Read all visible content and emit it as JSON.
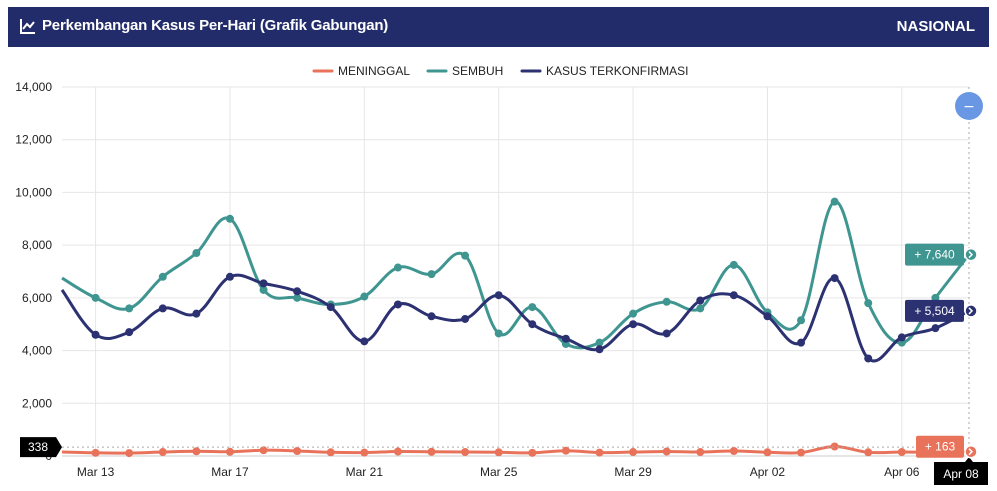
{
  "header": {
    "title": "Perkembangan Kasus Per-Hari (Grafik Gabungan)",
    "region": "NASIONAL"
  },
  "controls": {
    "zoom_out_symbol": "−"
  },
  "colors": {
    "header_bg": "#232c6b",
    "meninggal": "#e8735a",
    "sembuh": "#3f9590",
    "kasus": "#2c3172",
    "zoom_button": "#6a97e4",
    "crosshair_tag": "#000000"
  },
  "chart_data": {
    "type": "line",
    "x_range": [
      "Mar 12",
      "Apr 08"
    ],
    "x": [
      "Mar 12",
      "Mar 13",
      "Mar 14",
      "Mar 15",
      "Mar 16",
      "Mar 17",
      "Mar 18",
      "Mar 19",
      "Mar 20",
      "Mar 21",
      "Mar 22",
      "Mar 23",
      "Mar 24",
      "Mar 25",
      "Mar 26",
      "Mar 27",
      "Mar 28",
      "Mar 29",
      "Mar 30",
      "Mar 31",
      "Apr 01",
      "Apr 02",
      "Apr 03",
      "Apr 04",
      "Apr 05",
      "Apr 06",
      "Apr 07",
      "Apr 08"
    ],
    "x_tick_labels": [
      "Mar 13",
      "Mar 17",
      "Mar 21",
      "Mar 25",
      "Mar 29",
      "Apr 02",
      "Apr 06"
    ],
    "y_ticks": [
      "0",
      "2,000",
      "4,000",
      "6,000",
      "8,000",
      "10,000",
      "12,000",
      "14,000"
    ],
    "ylim": [
      0,
      14000
    ],
    "grid": true,
    "legend_position": "top-center",
    "series": [
      {
        "name": "MENINGGAL",
        "key": "meninggal",
        "values": [
          150,
          120,
          110,
          150,
          180,
          160,
          220,
          190,
          140,
          130,
          170,
          160,
          150,
          140,
          120,
          200,
          130,
          150,
          170,
          150,
          190,
          140,
          130,
          360,
          140,
          150,
          140,
          163
        ]
      },
      {
        "name": "SEMBUH",
        "key": "sembuh",
        "values": [
          6750,
          6000,
          5600,
          6800,
          7700,
          9000,
          6300,
          6000,
          5750,
          6050,
          7150,
          6900,
          7600,
          4650,
          5650,
          4250,
          4300,
          5400,
          5850,
          5600,
          7250,
          5450,
          5150,
          9650,
          5800,
          4300,
          6000,
          7640
        ]
      },
      {
        "name": "KASUS TERKONFIRMASI",
        "key": "kasus",
        "values": [
          6300,
          4600,
          4700,
          5600,
          5400,
          6800,
          6550,
          6250,
          5650,
          4350,
          5750,
          5300,
          5200,
          6100,
          5000,
          4450,
          4050,
          5000,
          4650,
          5900,
          6100,
          5300,
          4300,
          6750,
          3700,
          4500,
          4850,
          5504
        ]
      }
    ],
    "annotations": {
      "crosshair_x": "Apr 08",
      "crosshair_y": "338",
      "flags": [
        {
          "series": "sembuh",
          "label": "+ 7,640"
        },
        {
          "series": "kasus",
          "label": "+ 5,504"
        },
        {
          "series": "meninggal",
          "label": "+ 163"
        }
      ]
    }
  }
}
